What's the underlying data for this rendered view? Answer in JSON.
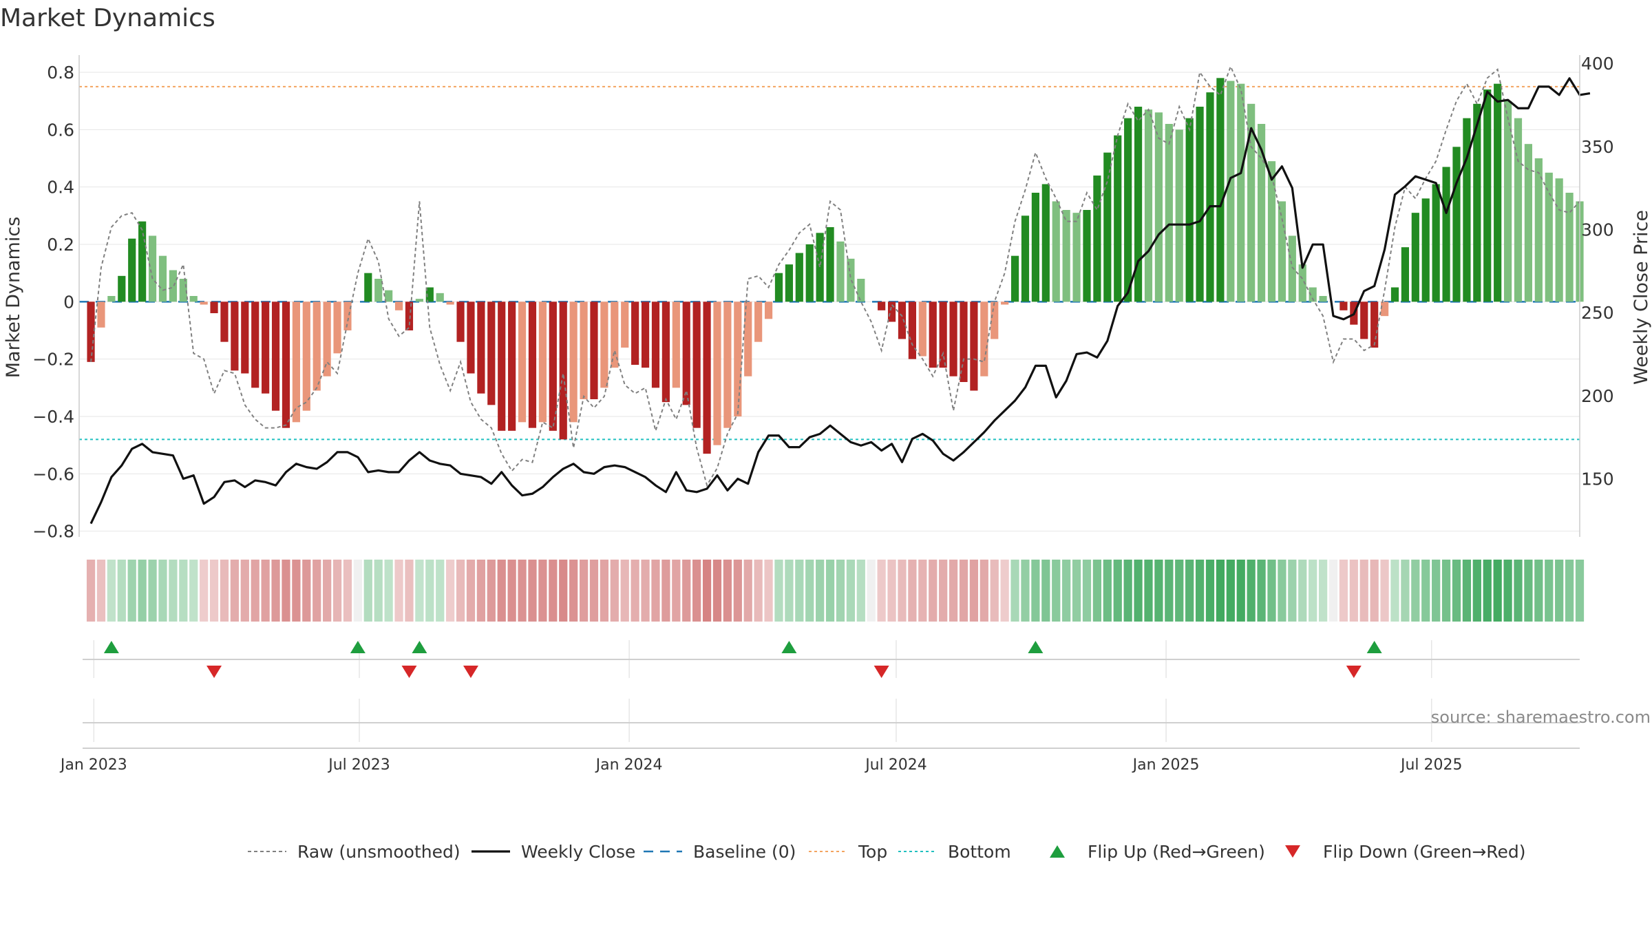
{
  "chart_data": {
    "type": "bar",
    "title": "Market Dynamics",
    "ylabel": "Market Dynamics",
    "y2label": "Weekly Close Price",
    "ylim": [
      -0.82,
      0.86
    ],
    "y2lim": [
      115,
      405
    ],
    "yticks": [
      -0.8,
      -0.6,
      -0.4,
      -0.2,
      0,
      0.2,
      0.4,
      0.6,
      0.8
    ],
    "ytick_labels": [
      "−0.8",
      "−0.6",
      "−0.4",
      "−0.2",
      "0",
      "0.2",
      "0.4",
      "0.6",
      "0.8"
    ],
    "y2ticks": [
      150,
      200,
      250,
      300,
      350,
      400
    ],
    "y2tick_labels": [
      "150",
      "200",
      "250",
      "300",
      "350",
      "400"
    ],
    "xticks": [
      {
        "date": "2023-01-01",
        "label": "Jan 2023"
      },
      {
        "date": "2023-07-01",
        "label": "Jul 2023"
      },
      {
        "date": "2024-01-01",
        "label": "Jan 2024"
      },
      {
        "date": "2024-07-01",
        "label": "Jul 2024"
      },
      {
        "date": "2025-01-01",
        "label": "Jan 2025"
      },
      {
        "date": "2025-07-01",
        "label": "Jul 2025"
      }
    ],
    "xrange": [
      "2022-12-22",
      "2025-10-10"
    ],
    "grid": true,
    "legend_position": "bottom-center",
    "first_week": "2022-12-30",
    "series": [
      {
        "name": "Market Dynamics",
        "kind": "bar",
        "values": [
          -0.21,
          -0.09,
          0.02,
          0.09,
          0.22,
          0.28,
          0.23,
          0.16,
          0.11,
          0.08,
          0.02,
          -0.01,
          -0.04,
          -0.14,
          -0.24,
          -0.25,
          -0.3,
          -0.32,
          -0.38,
          -0.44,
          -0.42,
          -0.38,
          -0.31,
          -0.26,
          -0.18,
          -0.1,
          0,
          0.1,
          0.08,
          0.04,
          -0.03,
          -0.1,
          0.01,
          0.05,
          0.03,
          -0.01,
          -0.14,
          -0.25,
          -0.32,
          -0.36,
          -0.45,
          -0.45,
          -0.42,
          -0.44,
          -0.42,
          -0.45,
          -0.48,
          -0.42,
          -0.34,
          -0.34,
          -0.3,
          -0.23,
          -0.16,
          -0.22,
          -0.23,
          -0.3,
          -0.35,
          -0.3,
          -0.36,
          -0.44,
          -0.53,
          -0.5,
          -0.44,
          -0.4,
          -0.26,
          -0.14,
          -0.06,
          0.1,
          0.13,
          0.17,
          0.2,
          0.24,
          0.26,
          0.21,
          0.15,
          0.08,
          0,
          -0.03,
          -0.07,
          -0.13,
          -0.2,
          -0.19,
          -0.23,
          -0.23,
          -0.26,
          -0.28,
          -0.31,
          -0.26,
          -0.13,
          -0.01,
          0.16,
          0.3,
          0.38,
          0.41,
          0.35,
          0.32,
          0.31,
          0.32,
          0.44,
          0.52,
          0.58,
          0.64,
          0.68,
          0.67,
          0.66,
          0.62,
          0.6,
          0.64,
          0.68,
          0.73,
          0.78,
          0.77,
          0.76,
          0.69,
          0.62,
          0.49,
          0.35,
          0.23,
          0.13,
          0.05,
          0.02,
          0,
          -0.03,
          -0.08,
          -0.13,
          -0.16,
          -0.05,
          0.05,
          0.19,
          0.31,
          0.36,
          0.41,
          0.47,
          0.54,
          0.64,
          0.69,
          0.74,
          0.76,
          0.7,
          0.64,
          0.55,
          0.5,
          0.45,
          0.43,
          0.38,
          0.35
        ]
      },
      {
        "name": "Raw (unsmoothed)",
        "kind": "line",
        "values": [
          -0.21,
          0.12,
          0.26,
          0.3,
          0.31,
          0.25,
          0.08,
          0.04,
          0.05,
          0.13,
          -0.18,
          -0.2,
          -0.32,
          -0.24,
          -0.25,
          -0.36,
          -0.41,
          -0.44,
          -0.44,
          -0.43,
          -0.37,
          -0.35,
          -0.3,
          -0.21,
          -0.25,
          -0.07,
          0.1,
          0.22,
          0.14,
          -0.06,
          -0.12,
          -0.09,
          0.35,
          -0.09,
          -0.22,
          -0.31,
          -0.21,
          -0.35,
          -0.41,
          -0.44,
          -0.53,
          -0.59,
          -0.55,
          -0.56,
          -0.42,
          -0.44,
          -0.25,
          -0.51,
          -0.33,
          -0.37,
          -0.33,
          -0.17,
          -0.29,
          -0.32,
          -0.3,
          -0.45,
          -0.34,
          -0.41,
          -0.31,
          -0.51,
          -0.64,
          -0.58,
          -0.46,
          -0.39,
          0.08,
          0.09,
          0.05,
          0.13,
          0.18,
          0.24,
          0.27,
          0.12,
          0.35,
          0.32,
          0.08,
          0,
          -0.07,
          -0.17,
          -0.01,
          -0.05,
          -0.15,
          -0.2,
          -0.26,
          -0.18,
          -0.38,
          -0.2,
          -0.2,
          -0.21,
          0,
          0.1,
          0.28,
          0.39,
          0.52,
          0.43,
          0.36,
          0.28,
          0.28,
          0.38,
          0.32,
          0.42,
          0.58,
          0.69,
          0.63,
          0.67,
          0.57,
          0.55,
          0.68,
          0.6,
          0.8,
          0.75,
          0.72,
          0.82,
          0.74,
          0.54,
          0.5,
          0.44,
          0.29,
          0.12,
          0.08,
          0.01,
          -0.05,
          -0.21,
          -0.13,
          -0.13,
          -0.17,
          -0.15,
          0.04,
          0.26,
          0.4,
          0.36,
          0.43,
          0.49,
          0.6,
          0.7,
          0.76,
          0.69,
          0.78,
          0.81,
          0.64,
          0.49,
          0.46,
          0.45,
          0.38,
          0.32,
          0.31,
          0.35
        ]
      },
      {
        "name": "Weekly Close",
        "kind": "line",
        "axis": "right",
        "values": [
          123,
          136,
          151,
          158,
          168,
          171,
          166,
          165,
          164,
          150,
          152,
          135,
          139,
          148,
          149,
          145,
          149,
          148,
          146,
          154,
          159,
          157,
          156,
          160,
          166,
          166,
          163,
          154,
          155,
          154,
          154,
          161,
          166,
          161,
          159,
          158,
          153,
          152,
          151,
          147,
          154,
          146,
          140,
          141,
          145,
          151,
          156,
          159,
          154,
          153,
          157,
          158,
          157,
          154,
          151,
          146,
          142,
          154,
          143,
          142,
          144,
          152,
          143,
          150,
          147,
          166,
          176,
          176,
          169,
          169,
          175,
          177,
          182,
          177,
          172,
          170,
          172,
          167,
          171,
          160,
          174,
          177,
          173,
          165,
          161,
          166,
          172,
          178,
          185,
          191,
          197,
          205,
          218,
          218,
          199,
          209,
          225,
          226,
          223,
          233,
          254,
          262,
          281,
          287,
          297,
          303,
          303,
          303,
          305,
          314,
          314,
          331,
          334,
          361,
          348,
          330,
          338,
          325,
          277,
          291,
          291,
          248,
          246,
          249,
          263,
          266,
          288,
          321,
          326,
          332,
          330,
          328,
          310,
          328,
          343,
          363,
          383,
          377,
          378,
          373,
          373,
          386,
          386,
          381,
          391,
          381,
          382
        ]
      },
      {
        "name": "Baseline (0)",
        "kind": "hline",
        "value": 0
      },
      {
        "name": "Top",
        "kind": "hline",
        "value": 0.75
      },
      {
        "name": "Bottom",
        "kind": "hline",
        "value": -0.48
      },
      {
        "name": "Flip Up (Red→Green)",
        "kind": "marker",
        "row": "upper",
        "weeks": [
          2,
          26,
          32,
          68,
          92,
          125
        ]
      },
      {
        "name": "Flip Down (Green→Red)",
        "kind": "marker",
        "row": "lower",
        "weeks": [
          12,
          31,
          37,
          77,
          123
        ]
      }
    ],
    "annotations": [
      "source: sharemaestro.com"
    ]
  },
  "colors": {
    "bar_up_strong": "#228b22",
    "bar_up_weak": "#7fbf7f",
    "bar_down_strong": "#b22222",
    "bar_down_weak": "#e9967a",
    "raw_line": "#808080",
    "close_line": "#111111",
    "baseline": "#1f77b4",
    "top": "#f4a460",
    "bottom": "#20c0c0",
    "flip_up": "#1e9e3e",
    "flip_down": "#d62728",
    "grid": "#e6e6e6",
    "source_text": "#8a8a8a"
  }
}
